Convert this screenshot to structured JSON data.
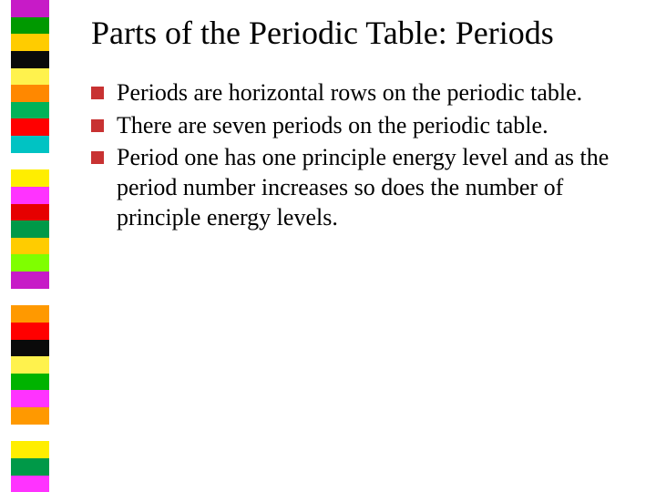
{
  "slide": {
    "title": "Parts of the Periodic Table: Periods",
    "title_fontsize": 36,
    "title_color": "#000000",
    "body_fontsize": 26,
    "body_color": "#000000",
    "background_color": "#ffffff",
    "bullets": [
      {
        "text": "Periods are horizontal rows on the periodic table.",
        "marker_color": "#c83232"
      },
      {
        "text": "There are seven periods on the periodic table.",
        "marker_color": "#c83232"
      },
      {
        "text": "Period one has one principle energy level and as the period number increases so does the number of principle energy levels.",
        "marker_color": "#c83232"
      }
    ]
  },
  "sidebar": {
    "stripes": [
      "#c71bc7",
      "#009900",
      "#ffcc00",
      "#0a0a0a",
      "#fff24d",
      "#ff8800",
      "#00b359",
      "#ff0000",
      "#00c3c3",
      "#ffffff",
      "#ffee00",
      "#ff33ff",
      "#e60000",
      "#009948",
      "#ffcc00",
      "#7fff00",
      "#c71bc7",
      "#ffffff",
      "#ff9900",
      "#ff0000",
      "#0a0a0a",
      "#fff24d",
      "#00b300",
      "#ff33ff",
      "#ff9900",
      "#ffffff",
      "#ffee00",
      "#009948",
      "#ff33ff"
    ]
  }
}
